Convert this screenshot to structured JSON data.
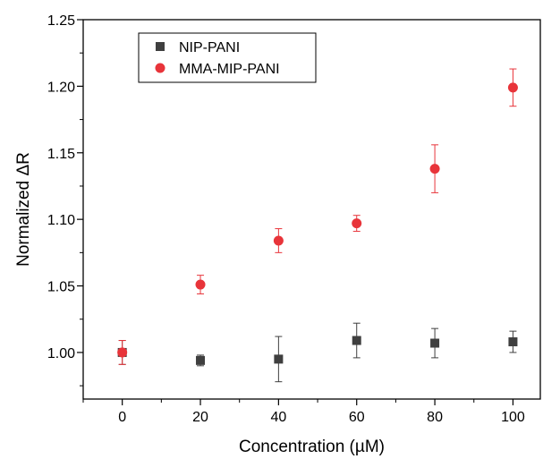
{
  "chart_data": {
    "type": "scatter",
    "xlabel": "Concentration (µM)",
    "ylabel": "Normalized ΔR",
    "xlim": [
      -10,
      107
    ],
    "ylim": [
      0.965,
      1.25
    ],
    "x": [
      0,
      20,
      40,
      60,
      80,
      100
    ],
    "x_ticks": [
      "0",
      "20",
      "40",
      "60",
      "80",
      "100"
    ],
    "y_ticks": [
      "1.00",
      "1.05",
      "1.10",
      "1.15",
      "1.20",
      "1.25"
    ],
    "y_tick_values": [
      1.0,
      1.05,
      1.1,
      1.15,
      1.2,
      1.25
    ],
    "legend_position": "top-left",
    "series": [
      {
        "name": "NIP-PANI",
        "marker": "square",
        "color": "#3f3f3f",
        "values": [
          1.0,
          0.994,
          0.995,
          1.009,
          1.007,
          1.008
        ],
        "error": [
          0.009,
          0.004,
          0.017,
          0.013,
          0.011,
          0.008
        ]
      },
      {
        "name": "MMA-MIP-PANI",
        "marker": "circle",
        "color": "#e8343a",
        "values": [
          1.0,
          1.051,
          1.084,
          1.097,
          1.138,
          1.199
        ],
        "error": [
          0.009,
          0.007,
          0.009,
          0.006,
          0.018,
          0.014
        ]
      }
    ]
  }
}
